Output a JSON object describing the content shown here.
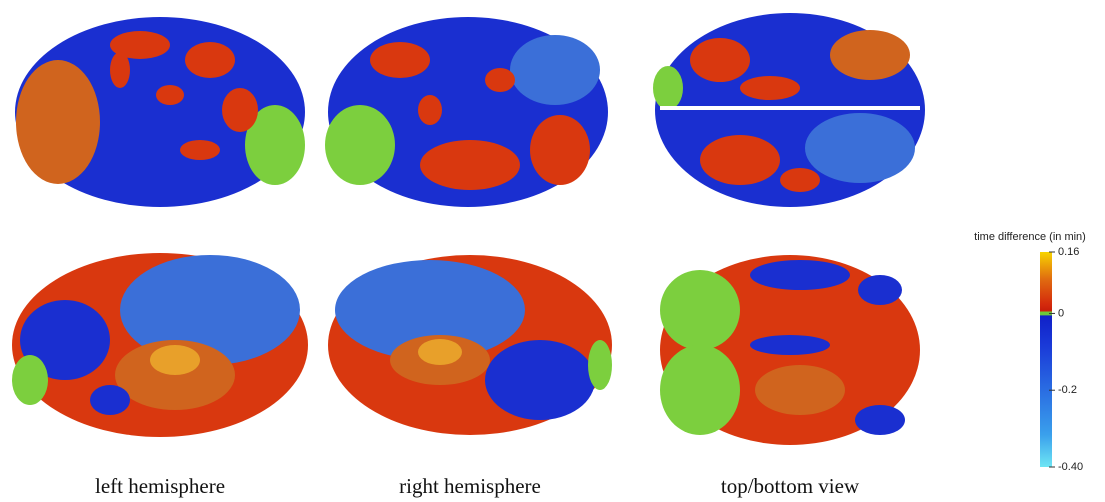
{
  "panels": [
    "left hemisphere",
    "right hemisphere",
    "top/bottom view"
  ],
  "colorbar": {
    "title": "time difference (in min)",
    "lim": [
      -0.4,
      0.16
    ],
    "ticks": [
      0.16,
      0,
      -0.2,
      {
        "value": -0.4,
        "label": "-0.40"
      }
    ]
  }
}
